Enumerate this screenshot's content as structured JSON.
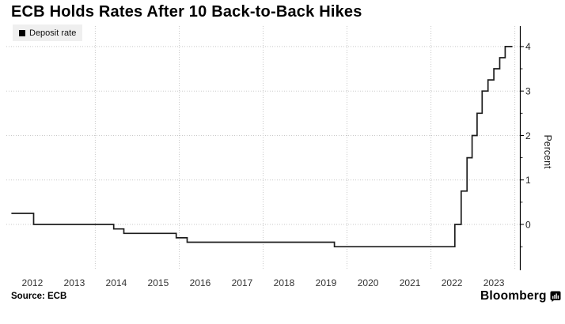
{
  "header": {
    "title": "ECB Holds Rates After 10 Back-to-Back Hikes"
  },
  "legend": {
    "label": "Deposit rate",
    "marker_color": "#000000",
    "bg": "#efefef"
  },
  "footer": {
    "source": "Source: ECB",
    "brand": "Bloomberg",
    "brand_icon": "bloomberg-terminal-icon"
  },
  "colors": {
    "line": "#1c1c1c",
    "grid": "#c9c9c9",
    "axis": "#000000",
    "background": "#ffffff",
    "legend_bg": "#efefef",
    "tick_text": "#222222"
  },
  "chart_data": {
    "type": "line",
    "subtype": "step-after",
    "title": "ECB Holds Rates After 10 Back-to-Back Hikes",
    "series_name": "Deposit rate",
    "xlabel": "",
    "ylabel": "Percent",
    "xlim": [
      2011.88,
      2024.12
    ],
    "ylim": [
      -1.03,
      4.46
    ],
    "x_tick_years": [
      "2012",
      "2013",
      "2014",
      "2015",
      "2016",
      "2017",
      "2018",
      "2019",
      "2020",
      "2021",
      "2022",
      "2023"
    ],
    "y_ticks": [
      0,
      1,
      2,
      3,
      4
    ],
    "y_minor_ticks": [
      -0.5,
      0.5,
      1.5,
      2.5,
      3.5
    ],
    "x_gridlines": [
      2014,
      2016,
      2018,
      2020,
      2022,
      2024
    ],
    "y_gridlines": [
      0,
      1,
      2,
      3,
      4
    ],
    "grid": true,
    "legend_position": "top-left",
    "y_axis_side": "right",
    "steps": [
      {
        "x": 2012.0,
        "y": 0.25
      },
      {
        "x": 2012.53,
        "y": 0.0
      },
      {
        "x": 2014.44,
        "y": -0.1
      },
      {
        "x": 2014.68,
        "y": -0.2
      },
      {
        "x": 2015.93,
        "y": -0.3
      },
      {
        "x": 2016.19,
        "y": -0.4
      },
      {
        "x": 2019.7,
        "y": -0.5
      },
      {
        "x": 2022.57,
        "y": 0.0
      },
      {
        "x": 2022.72,
        "y": 0.75
      },
      {
        "x": 2022.86,
        "y": 1.5
      },
      {
        "x": 2022.98,
        "y": 2.0
      },
      {
        "x": 2023.1,
        "y": 2.5
      },
      {
        "x": 2023.22,
        "y": 3.0
      },
      {
        "x": 2023.36,
        "y": 3.25
      },
      {
        "x": 2023.5,
        "y": 3.5
      },
      {
        "x": 2023.64,
        "y": 3.75
      },
      {
        "x": 2023.77,
        "y": 4.0
      }
    ],
    "x_end": 2023.94
  }
}
